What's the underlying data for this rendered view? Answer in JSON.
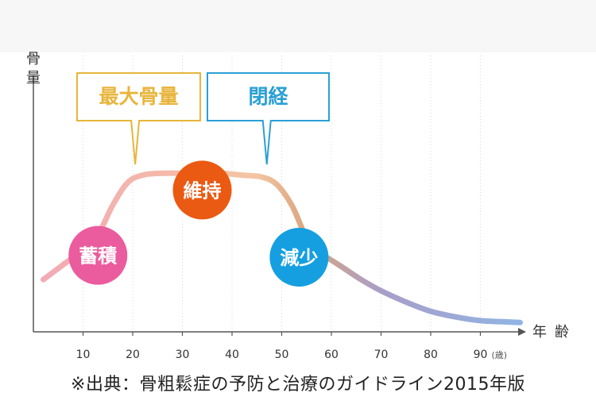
{
  "chart_data": {
    "type": "line",
    "ylabel": "骨量",
    "xlabel": "年齢",
    "x_unit": "(歳)",
    "xlim": [
      0,
      100
    ],
    "ylim": [
      0,
      100
    ],
    "x_ticks": [
      10,
      20,
      30,
      40,
      50,
      60,
      70,
      80,
      90
    ],
    "grid": "vertical dotted",
    "series": [
      {
        "x": [
          2,
          6,
          10,
          13,
          16,
          19,
          22,
          26,
          30,
          34,
          38,
          42,
          46,
          49,
          52,
          54,
          56,
          59,
          62,
          66,
          70,
          75,
          80,
          85,
          90,
          94,
          98
        ],
        "values": [
          28,
          36,
          44,
          52,
          68,
          80,
          84,
          85,
          85,
          85,
          85,
          84,
          83,
          79,
          68,
          56,
          44,
          40,
          35,
          28,
          22,
          16,
          11,
          8,
          6,
          5.5,
          5
        ]
      }
    ],
    "annotations": {
      "callouts": [
        {
          "label": "最大骨量",
          "color": "#e8b53d",
          "pointer_x": 20.5
        },
        {
          "label": "閉経",
          "color": "#2aa0d4",
          "pointer_x": 47
        }
      ],
      "phases": [
        {
          "label": "蓄積",
          "color": "#ea5c9d",
          "x": 13,
          "y": 41
        },
        {
          "label": "維持",
          "color": "#ea5a13",
          "x": 34,
          "y": 76
        },
        {
          "label": "減少",
          "color": "#159fe0",
          "x": 53.5,
          "y": 40
        }
      ]
    }
  },
  "source_note": "※出典：骨粗鬆症の予防と治療のガイドライン2015年版"
}
